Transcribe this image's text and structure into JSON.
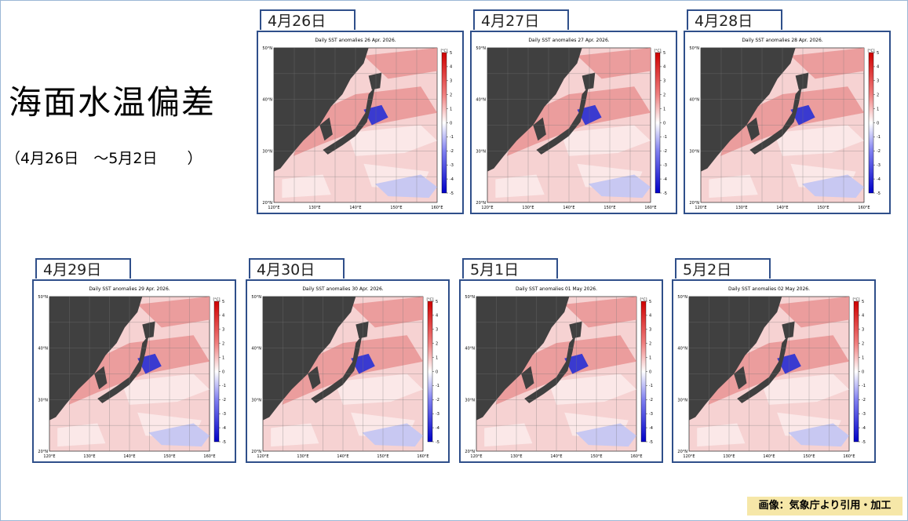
{
  "title": "海面水温偏差",
  "subtitle": "（4月26日　～5月2日　　）",
  "panels": [
    {
      "date": "4月26日",
      "map_title": "Daily SST anomalies 26 Apr. 2026."
    },
    {
      "date": "4月27日",
      "map_title": "Daily SST anomalies 27 Apr. 2026."
    },
    {
      "date": "4月28日",
      "map_title": "Daily SST anomalies 28 Apr. 2026."
    },
    {
      "date": "4月29日",
      "map_title": "Daily SST anomalies 29 Apr. 2026."
    },
    {
      "date": "4月30日",
      "map_title": "Daily SST anomalies 30 Apr. 2026."
    },
    {
      "date": "5月1日",
      "map_title": "Daily SST anomalies 01 May 2026."
    },
    {
      "date": "5月2日",
      "map_title": "Daily SST anomalies 02 May 2026."
    }
  ],
  "map_axes": {
    "lat_labels": [
      "50°N",
      "40°N",
      "30°N",
      "20°N"
    ],
    "lon_labels": [
      "120°E",
      "130°E",
      "140°E",
      "150°E",
      "160°E"
    ],
    "colorbar_unit": "[°C]",
    "colorbar_ticks": [
      5,
      4,
      3,
      2,
      1,
      0,
      -1,
      -2,
      -3,
      -4,
      -5
    ]
  },
  "credit": "画像：気象庁より引用・加工"
}
